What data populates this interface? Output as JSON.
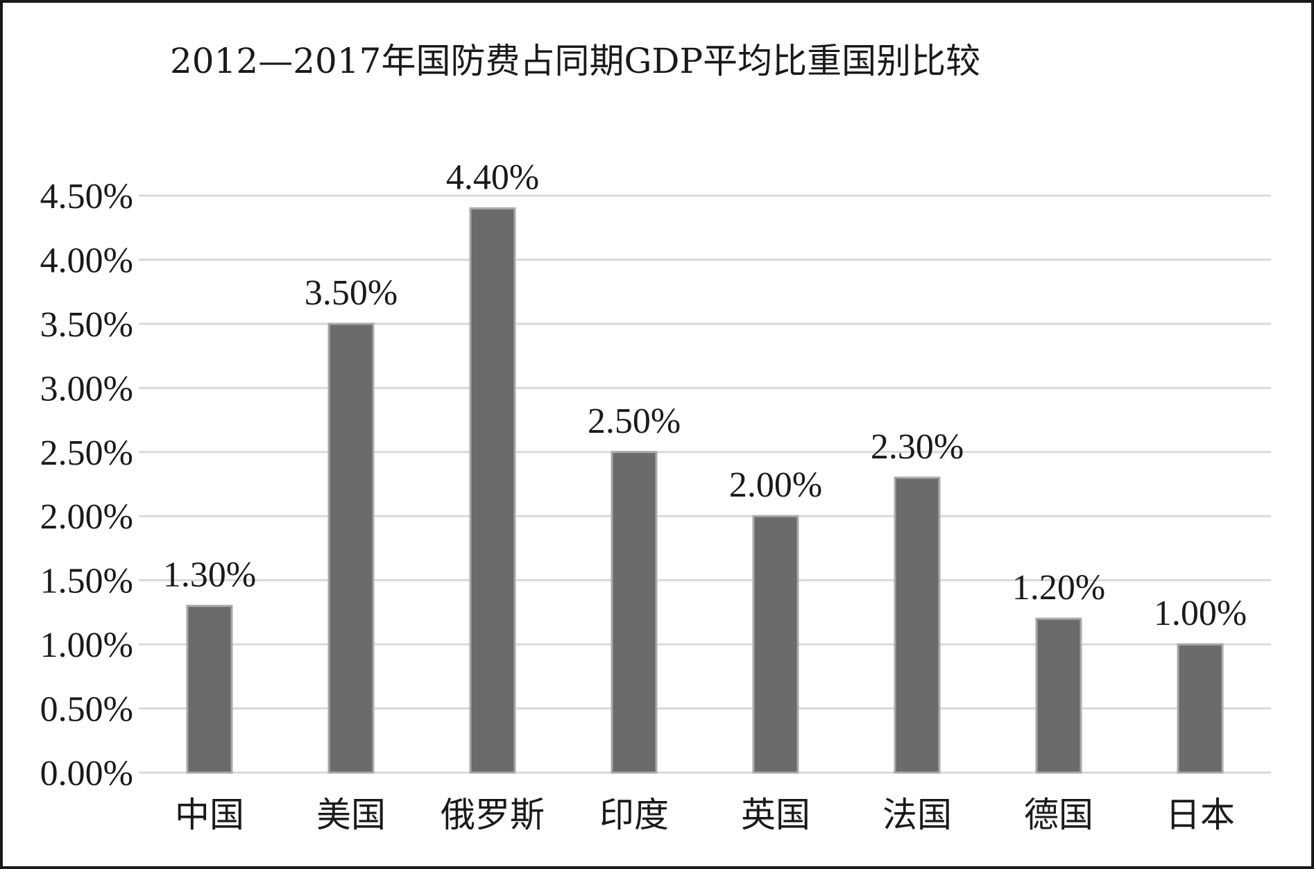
{
  "chart_data": {
    "type": "bar",
    "title": "2012—2017年国防费占同期GDP平均比重国别比较",
    "xlabel": "",
    "ylabel": "",
    "categories": [
      "中国",
      "美国",
      "俄罗斯",
      "印度",
      "英国",
      "法国",
      "德国",
      "日本"
    ],
    "values": [
      1.3,
      3.5,
      4.4,
      2.5,
      2.0,
      2.3,
      1.2,
      1.0
    ],
    "data_labels": [
      "1.30%",
      "3.50%",
      "4.40%",
      "2.50%",
      "2.00%",
      "2.30%",
      "1.20%",
      "1.00%"
    ],
    "ylim": [
      0,
      4.5
    ],
    "y_ticks": [
      0,
      0.5,
      1.0,
      1.5,
      2.0,
      2.5,
      3.0,
      3.5,
      4.0,
      4.5
    ],
    "y_tick_labels": [
      "0.00%",
      "0.50%",
      "1.00%",
      "1.50%",
      "2.00%",
      "2.50%",
      "3.00%",
      "3.50%",
      "4.00%",
      "4.50%"
    ],
    "grid": true,
    "legend": "none",
    "colors": {
      "bar_fill": "#6b6b6b",
      "bar_stroke": "#a8a8a8",
      "grid": "#d9d9d9",
      "text": "#1a1a1a"
    }
  }
}
